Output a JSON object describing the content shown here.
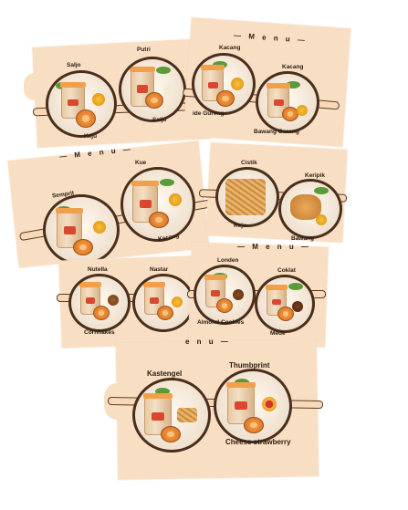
{
  "colors": {
    "card": "#f8dfc4",
    "frame": "#4a2e1c",
    "text": "#2b1a10"
  },
  "menu_title": "— M e n u —",
  "menu_title_partial": "e n u —",
  "labels": {
    "saljo": "Saljo",
    "keju_1": "Keju",
    "putri": "Putri",
    "saljo_2": "Saljo",
    "kacang_1": "Kacang",
    "ide_gureng": "ide Gureng",
    "kacang_2": "Kacang",
    "bawang_goreng": "Bawang Goreng",
    "semprit": "Semprit",
    "kue": "Kue",
    "kacang_3": "Kacang",
    "cistik": "Cistik",
    "keju_2": "Keju",
    "keripik": "Keripik",
    "bawang": "Bawang",
    "nutella": "Nutella",
    "cornflakes": "Cornflakes",
    "nastar": "Nastar",
    "londen": "Londen",
    "almond_cookies": "Almond Cookies",
    "coklat": "Coklat",
    "mede": "Mede",
    "kastengel": "Kastengel",
    "thumbprint": "Thumbprint",
    "cheese_strawberry": "Cheese strawberry"
  }
}
